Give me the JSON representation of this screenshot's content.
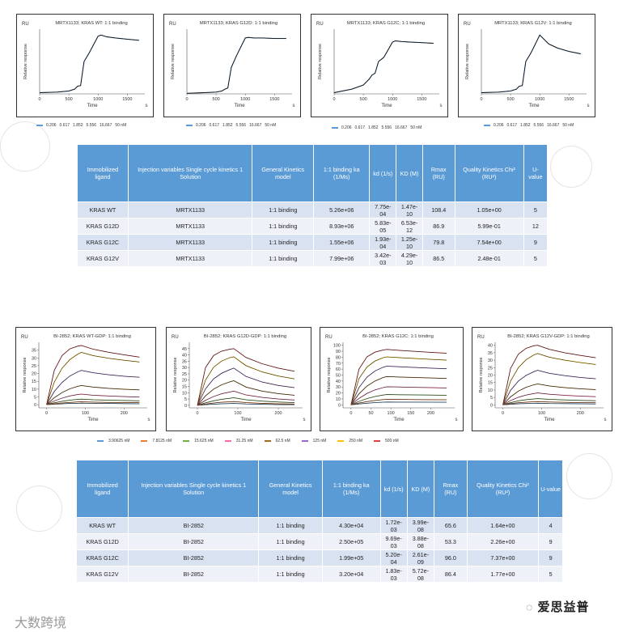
{
  "axes": {
    "unit": "RU",
    "ylabel": "Relative response",
    "xlabel": "Time",
    "xunit": "s"
  },
  "top_legend": {
    "entries": [
      "0.206",
      "0.617",
      "1.852",
      "5.556",
      "16.667",
      "50 nM"
    ],
    "color": "#5b9bd5"
  },
  "bottom_legend": {
    "entries": [
      {
        "label": "3.90625 nM",
        "color": "#5b9bd5"
      },
      {
        "label": "7.8125 nM",
        "color": "#ed7d31"
      },
      {
        "label": "15.625 nM",
        "color": "#70ad47"
      },
      {
        "label": "31.25 nM",
        "color": "#ff66a3"
      },
      {
        "label": "62.5 nM",
        "color": "#9e6a1e"
      },
      {
        "label": "125 nM",
        "color": "#9966cc"
      },
      {
        "label": "250 nM",
        "color": "#ffc000"
      },
      {
        "label": "500 nM",
        "color": "#e04040"
      }
    ]
  },
  "chart_data": [
    {
      "type": "line",
      "title": "MRTX1133; KRAS WT: 1:1 binding",
      "xlim": [
        0,
        1800
      ],
      "ylim": [
        0,
        110
      ],
      "xticks": [
        0,
        500,
        1000,
        1500
      ],
      "yticks": [],
      "x": [
        0,
        300,
        500,
        600,
        650,
        700,
        760,
        850,
        1000,
        1050,
        1150,
        1300,
        1500,
        1700
      ],
      "series": [
        {
          "values": [
            2,
            3,
            5,
            8,
            13,
            14,
            55,
            70,
            98,
            100,
            97,
            95,
            93,
            91
          ]
        }
      ]
    },
    {
      "type": "line",
      "title": "MRTX1133; KRAS G12D: 1:1 binding",
      "xlim": [
        0,
        1800
      ],
      "ylim": [
        0,
        110
      ],
      "xticks": [
        0,
        500,
        1000,
        1500
      ],
      "yticks": [],
      "x": [
        0,
        300,
        500,
        600,
        650,
        700,
        760,
        850,
        1000,
        1050,
        1150,
        1300,
        1500,
        1700
      ],
      "series": [
        {
          "values": [
            1,
            2,
            3,
            5,
            8,
            10,
            45,
            65,
            95,
            96,
            95,
            95,
            94,
            94
          ]
        }
      ]
    },
    {
      "type": "line",
      "title": "MRTX1133; KRAS G12C; 1:1 binding",
      "xlim": [
        0,
        1800
      ],
      "ylim": [
        0,
        110
      ],
      "xticks": [
        0,
        500,
        1000,
        1500
      ],
      "yticks": [],
      "x": [
        0,
        300,
        500,
        600,
        650,
        700,
        760,
        850,
        1000,
        1050,
        1150,
        1300,
        1500,
        1700
      ],
      "series": [
        {
          "values": [
            2,
            8,
            15,
            25,
            32,
            35,
            55,
            62,
            88,
            90,
            89,
            88,
            87,
            86
          ]
        }
      ]
    },
    {
      "type": "line",
      "title": "MRTX1133; KRAS G12V: 1:1 binding",
      "xlim": [
        0,
        1800
      ],
      "ylim": [
        0,
        110
      ],
      "xticks": [
        0,
        500,
        1000,
        1500
      ],
      "yticks": [],
      "x": [
        0,
        300,
        500,
        600,
        650,
        700,
        760,
        850,
        1000,
        1050,
        1150,
        1300,
        1500,
        1700
      ],
      "series": [
        {
          "values": [
            2,
            3,
            5,
            8,
            13,
            14,
            55,
            70,
            100,
            95,
            85,
            78,
            72,
            68
          ]
        }
      ]
    },
    {
      "type": "line",
      "title": "BI-2852; KRAS WT-GDP: 1:1 binding",
      "xlim": [
        -20,
        260
      ],
      "ylim": [
        -2,
        40
      ],
      "xticks": [
        0,
        100,
        200
      ],
      "yticks": [
        0,
        5,
        10,
        15,
        20,
        25,
        30,
        35
      ],
      "x": [
        0,
        20,
        40,
        60,
        80,
        90,
        120,
        160,
        200,
        240
      ],
      "series": [
        {
          "values": [
            0,
            0.3,
            0.6,
            0.8,
            0.9,
            1.0,
            0.9,
            0.8,
            0.7,
            0.6
          ]
        },
        {
          "values": [
            0,
            0.6,
            1.1,
            1.5,
            1.8,
            1.9,
            1.7,
            1.5,
            1.4,
            1.3
          ]
        },
        {
          "values": [
            0,
            1.2,
            2.2,
            2.9,
            3.4,
            3.6,
            3.2,
            2.9,
            2.7,
            2.5
          ]
        },
        {
          "values": [
            0,
            2.4,
            4.2,
            5.6,
            6.5,
            6.8,
            6.1,
            5.6,
            5.2,
            4.9
          ]
        },
        {
          "values": [
            0,
            4.5,
            7.8,
            10.2,
            11.8,
            12.3,
            11.3,
            10.5,
            9.9,
            9.5
          ]
        },
        {
          "values": [
            0,
            8.5,
            14.3,
            18.4,
            21.0,
            22.0,
            20.5,
            19.2,
            18.3,
            17.6
          ]
        },
        {
          "values": [
            0,
            14.5,
            23.4,
            28.9,
            32.4,
            33.5,
            31.5,
            29.8,
            28.5,
            27.4
          ]
        },
        {
          "values": [
            0,
            22.0,
            31.5,
            35.8,
            37.5,
            38.0,
            35.6,
            33.6,
            32.0,
            30.5
          ]
        }
      ]
    },
    {
      "type": "line",
      "title": "BI-2852; KRAS G12D-GDP: 1:1 binding",
      "xlim": [
        -20,
        260
      ],
      "ylim": [
        -2,
        50
      ],
      "xticks": [
        0,
        100,
        200
      ],
      "yticks": [
        0,
        5,
        10,
        15,
        20,
        25,
        30,
        35,
        40,
        45
      ],
      "x": [
        0,
        20,
        40,
        60,
        80,
        90,
        120,
        160,
        200,
        240
      ],
      "series": [
        {
          "values": [
            0,
            0.5,
            0.9,
            1.2,
            1.4,
            1.5,
            1.1,
            0.8,
            0.6,
            0.5
          ]
        },
        {
          "values": [
            0,
            1.0,
            1.8,
            2.4,
            2.8,
            3.0,
            2.2,
            1.6,
            1.2,
            1.0
          ]
        },
        {
          "values": [
            0,
            2.0,
            3.6,
            4.8,
            5.6,
            6.0,
            4.4,
            3.3,
            2.6,
            2.1
          ]
        },
        {
          "values": [
            0,
            4.0,
            7.0,
            9.2,
            10.6,
            11.3,
            8.3,
            6.3,
            5.0,
            4.2
          ]
        },
        {
          "values": [
            0,
            7.5,
            12.8,
            16.3,
            18.6,
            19.5,
            14.5,
            11.3,
            9.3,
            8.0
          ]
        },
        {
          "values": [
            0,
            13.0,
            21.0,
            25.5,
            28.3,
            29.5,
            23.0,
            18.5,
            15.8,
            14.0
          ]
        },
        {
          "values": [
            0,
            20.0,
            30.2,
            35.2,
            37.8,
            38.5,
            31.5,
            26.5,
            23.2,
            21.0
          ]
        },
        {
          "values": [
            0,
            30.0,
            39.5,
            43.0,
            44.5,
            45.0,
            38.0,
            33.0,
            29.5,
            27.0
          ]
        }
      ]
    },
    {
      "type": "line",
      "title": "BI-2852; KRAS G12C: 1:1 binding",
      "xlim": [
        -20,
        260
      ],
      "ylim": [
        -5,
        105
      ],
      "xticks": [
        0,
        50,
        100,
        150,
        200
      ],
      "yticks": [
        0,
        10,
        20,
        30,
        40,
        50,
        60,
        70,
        80,
        90,
        100
      ],
      "x": [
        0,
        20,
        40,
        60,
        80,
        90,
        120,
        160,
        200,
        240
      ],
      "series": [
        {
          "values": [
            0,
            1.5,
            2.8,
            3.8,
            4.5,
            4.8,
            4.7,
            4.6,
            4.5,
            4.4
          ]
        },
        {
          "values": [
            0,
            3.0,
            5.5,
            7.4,
            8.8,
            9.3,
            9.1,
            8.9,
            8.7,
            8.6
          ]
        },
        {
          "values": [
            0,
            5.8,
            10.5,
            14.0,
            16.4,
            17.3,
            17.0,
            16.7,
            16.4,
            16.1
          ]
        },
        {
          "values": [
            0,
            10.8,
            19.2,
            25.0,
            29.0,
            30.5,
            30.0,
            29.4,
            28.9,
            28.4
          ]
        },
        {
          "values": [
            0,
            18.5,
            31.5,
            40.0,
            45.8,
            47.5,
            46.8,
            45.9,
            45.1,
            44.3
          ]
        },
        {
          "values": [
            0,
            29.0,
            46.5,
            56.8,
            63.0,
            65.0,
            64.0,
            62.8,
            61.7,
            60.6
          ]
        },
        {
          "values": [
            0,
            44.0,
            63.5,
            73.5,
            79.0,
            80.5,
            79.3,
            77.8,
            76.4,
            75.0
          ]
        },
        {
          "values": [
            0,
            60.0,
            80.5,
            88.5,
            92.0,
            93.0,
            91.6,
            89.8,
            88.2,
            86.7
          ]
        }
      ]
    },
    {
      "type": "line",
      "title": "BI-2852; KRAS G12V-GDP: 1:1 binding",
      "xlim": [
        -20,
        260
      ],
      "ylim": [
        -2,
        42
      ],
      "xticks": [
        0,
        100,
        200
      ],
      "yticks": [
        0,
        5,
        10,
        15,
        20,
        25,
        30,
        35,
        40
      ],
      "x": [
        0,
        20,
        40,
        60,
        80,
        90,
        120,
        160,
        200,
        240
      ],
      "series": [
        {
          "values": [
            0,
            0.4,
            0.7,
            0.9,
            1.0,
            1.1,
            0.9,
            0.8,
            0.7,
            0.6
          ]
        },
        {
          "values": [
            0,
            0.8,
            1.4,
            1.8,
            2.1,
            2.2,
            1.9,
            1.7,
            1.5,
            1.4
          ]
        },
        {
          "values": [
            0,
            1.5,
            2.7,
            3.5,
            4.0,
            4.2,
            3.7,
            3.3,
            3.0,
            2.8
          ]
        },
        {
          "values": [
            0,
            2.9,
            5.1,
            6.6,
            7.6,
            8.0,
            7.1,
            6.4,
            5.9,
            5.5
          ]
        },
        {
          "values": [
            0,
            5.4,
            9.2,
            11.8,
            13.5,
            14.1,
            12.7,
            11.6,
            10.8,
            10.2
          ]
        },
        {
          "values": [
            0,
            9.8,
            16.0,
            19.8,
            22.3,
            23.2,
            21.2,
            19.6,
            18.4,
            17.5
          ]
        },
        {
          "values": [
            0,
            16.0,
            25.0,
            30.3,
            33.5,
            34.5,
            32.0,
            30.0,
            28.4,
            27.1
          ]
        },
        {
          "values": [
            0,
            24.5,
            34.0,
            38.0,
            39.7,
            40.0,
            37.3,
            35.0,
            33.2,
            31.6
          ]
        }
      ]
    }
  ],
  "table1": {
    "headers": [
      "Immobilized ligand",
      "Injection variables Single cycle kinetics 1 Solution",
      "General Kinetics model",
      "1:1 binding ka (1/Ms)",
      "kd (1/s)",
      "KD (M)",
      "Rmax (RU)",
      "Quality Kinetics Chi² (RU²)",
      "U-value"
    ],
    "rows": [
      [
        "KRAS WT",
        "MRTX1133",
        "1:1 binding",
        "5.26e+06",
        "7.75e-04",
        "1.47e-10",
        "108.4",
        "1.05e+00",
        "5"
      ],
      [
        "KRAS G12D",
        "MRTX1133",
        "1:1 binding",
        "8.93e+06",
        "5.83e-05",
        "6.53e-12",
        "86.9",
        "5.99e-01",
        "12"
      ],
      [
        "KRAS G12C",
        "MRTX1133",
        "1:1 binding",
        "1.55e+06",
        "1.93e-04",
        "1.25e-10",
        "79.8",
        "7.54e+00",
        "9"
      ],
      [
        "KRAS G12V",
        "MRTX1133",
        "1:1 binding",
        "7.99e+06",
        "3.42e-03",
        "4.29e-10",
        "86.5",
        "2.48e-01",
        "5"
      ]
    ]
  },
  "table2": {
    "headers": [
      "Immobilized ligand",
      "Injection variables Single cycle kinetics 1 Solution",
      "General Kinetics model",
      "1:1 binding ka (1/Ms)",
      "kd (1/s)",
      "KD (M)",
      "Rmax (RU)",
      "Quality Kinetics Chi² (RU²)",
      "U-value"
    ],
    "rows": [
      [
        "KRAS WT",
        "BI-2852",
        "1:1 binding",
        "4.30e+04",
        "1.72e-03",
        "3.99e-08",
        "65.6",
        "1.64e+00",
        "4"
      ],
      [
        "KRAS G12D",
        "BI-2852",
        "1:1 binding",
        "2.50e+05",
        "9.69e-03",
        "3.88e-08",
        "53.3",
        "2.26e+00",
        "9"
      ],
      [
        "KRAS G12C",
        "BI-2852",
        "1:1 binding",
        "1.99e+05",
        "5.20e-04",
        "2.61e-09",
        "96.0",
        "7.37e+00",
        "9"
      ],
      [
        "KRAS G12V",
        "BI-2852",
        "1:1 binding",
        "3.20e+04",
        "1.83e-03",
        "5.72e-08",
        "86.4",
        "1.77e+00",
        "5"
      ]
    ]
  },
  "watermark_left": "大数跨境",
  "watermark_right": "爱思益普",
  "colors": {
    "fit_line": "#111111",
    "top_curve": "#5b9bd5",
    "header_bg": "#5b9bd5"
  }
}
